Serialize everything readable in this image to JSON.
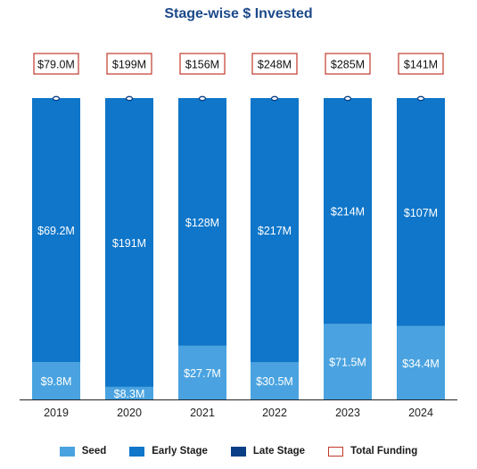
{
  "chart_data": {
    "type": "bar",
    "stacked": true,
    "title": "Stage-wise $ Invested",
    "categories": [
      "2019",
      "2020",
      "2021",
      "2022",
      "2023",
      "2024"
    ],
    "series": [
      {
        "name": "Seed",
        "values": [
          9.8,
          8.3,
          27.7,
          30.5,
          71.5,
          34.4
        ],
        "labels": [
          "$9.8M",
          "$8.3M",
          "$27.7M",
          "$30.5M",
          "$71.5M",
          "$34.4M"
        ]
      },
      {
        "name": "Early Stage",
        "values": [
          69.2,
          191,
          128,
          217,
          214,
          107
        ],
        "labels": [
          "$69.2M",
          "$191M",
          "$128M",
          "$217M",
          "$214M",
          "$107M"
        ]
      },
      {
        "name": "Late Stage",
        "values": [
          0,
          0,
          0,
          0,
          0,
          0
        ]
      }
    ],
    "totals": {
      "name": "Total Funding",
      "values": [
        79.0,
        199,
        156,
        248,
        285,
        141
      ],
      "labels": [
        "$79.0M",
        "$199M",
        "$156M",
        "$248M",
        "$285M",
        "$141M"
      ]
    },
    "colors": {
      "Seed": "#4aa3e0",
      "Early Stage": "#0f76c9",
      "Late Stage": "#0a3f86",
      "Total Funding": "#c0392b",
      "title": "#1c4a8a",
      "axis": "#222222"
    },
    "normalized_to_100_percent": true,
    "legend": {
      "position": "bottom"
    },
    "grid": false
  }
}
